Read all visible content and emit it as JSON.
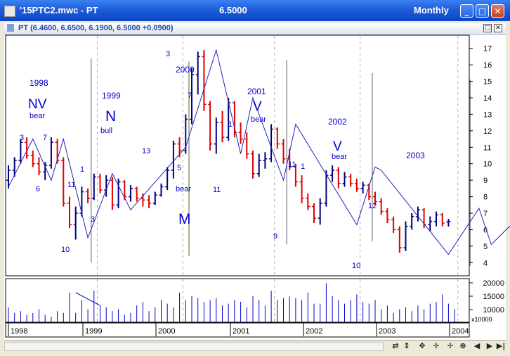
{
  "window": {
    "title": "'15PTC2.mwc - PT",
    "price": "6.5000",
    "period": "Monthly",
    "controls": [
      "_",
      "□",
      "✕"
    ]
  },
  "chart_header": {
    "symbol_text": "PT (6.4600, 6.6500, 6.1900, 6.5000 +0.0900)"
  },
  "annotations": [
    {
      "text": "1998",
      "color": "#0000CC"
    },
    {
      "text": "NV",
      "color": "#0000CC"
    },
    {
      "text": "bear",
      "color": "#0000CC"
    },
    {
      "text": "1999",
      "color": "#0000CC"
    },
    {
      "text": "N",
      "color": "#0000CC"
    },
    {
      "text": "bull",
      "color": "#0000CC"
    },
    {
      "text": "2000",
      "color": "#0000CC"
    },
    {
      "text": "bear",
      "color": "#0000CC"
    },
    {
      "text": "M",
      "color": "#0000CC"
    },
    {
      "text": "2001",
      "color": "#0000CC"
    },
    {
      "text": "V",
      "color": "#0000CC"
    },
    {
      "text": "bear",
      "color": "#0000CC"
    },
    {
      "text": "2002",
      "color": "#0000CC"
    },
    {
      "text": "V",
      "color": "#0000CC"
    },
    {
      "text": "bear",
      "color": "#0000CC"
    },
    {
      "text": "2003",
      "color": "#0000CC"
    }
  ],
  "wave_numbers": [
    "3",
    "7",
    "6",
    "10",
    "11",
    "1",
    "3",
    "13",
    "3",
    "7",
    "5",
    "11",
    "1",
    "9",
    "11",
    "1",
    "10",
    "12"
  ],
  "chart_data": {
    "type": "ohlc",
    "x_axis_labels": [
      "1998",
      "1999",
      "2000",
      "2001",
      "2002",
      "2003",
      "2004"
    ],
    "y_axis": {
      "ticks": [
        4,
        5,
        6,
        7,
        8,
        9,
        10,
        11,
        12,
        13,
        14,
        15,
        16,
        17
      ],
      "range": [
        3.2,
        17.8
      ]
    },
    "volume_axis": {
      "ticks": [
        "20000",
        "15000",
        "10000"
      ],
      "multiplier_label": "x10000"
    },
    "bars": [
      {
        "o": 9.0,
        "h": 9.9,
        "l": 8.5,
        "c": 9.6,
        "up": true
      },
      {
        "o": 9.6,
        "h": 10.4,
        "l": 9.2,
        "c": 10.2,
        "up": true
      },
      {
        "o": 10.2,
        "h": 11.5,
        "l": 10.0,
        "c": 11.3,
        "up": true
      },
      {
        "o": 11.3,
        "h": 11.6,
        "l": 10.3,
        "c": 10.5,
        "up": false
      },
      {
        "o": 10.5,
        "h": 10.8,
        "l": 9.8,
        "c": 10.0,
        "up": false
      },
      {
        "o": 10.0,
        "h": 10.4,
        "l": 9.3,
        "c": 9.5,
        "up": false
      },
      {
        "o": 9.5,
        "h": 10.1,
        "l": 9.0,
        "c": 9.9,
        "up": true
      },
      {
        "o": 9.9,
        "h": 11.6,
        "l": 9.7,
        "c": 11.3,
        "up": true
      },
      {
        "o": 11.3,
        "h": 11.5,
        "l": 10.0,
        "c": 10.2,
        "up": false
      },
      {
        "o": 10.2,
        "h": 10.4,
        "l": 7.4,
        "c": 7.6,
        "up": false
      },
      {
        "o": 7.6,
        "h": 8.0,
        "l": 6.1,
        "c": 6.3,
        "up": false
      },
      {
        "o": 6.3,
        "h": 7.4,
        "l": 5.4,
        "c": 7.0,
        "up": true
      },
      {
        "o": 7.0,
        "h": 8.6,
        "l": 6.8,
        "c": 8.3,
        "up": true
      },
      {
        "o": 8.3,
        "h": 8.5,
        "l": 7.6,
        "c": 7.9,
        "up": false
      },
      {
        "o": 7.9,
        "h": 9.4,
        "l": 7.8,
        "c": 9.2,
        "up": true
      },
      {
        "o": 9.2,
        "h": 9.4,
        "l": 8.2,
        "c": 8.4,
        "up": false
      },
      {
        "o": 8.4,
        "h": 9.3,
        "l": 8.0,
        "c": 9.0,
        "up": true
      },
      {
        "o": 9.0,
        "h": 9.2,
        "l": 7.2,
        "c": 7.5,
        "up": false
      },
      {
        "o": 7.5,
        "h": 9.1,
        "l": 7.3,
        "c": 8.9,
        "up": true
      },
      {
        "o": 8.9,
        "h": 9.0,
        "l": 7.8,
        "c": 8.0,
        "up": false
      },
      {
        "o": 8.0,
        "h": 8.7,
        "l": 7.7,
        "c": 8.5,
        "up": true
      },
      {
        "o": 8.5,
        "h": 8.6,
        "l": 7.7,
        "c": 7.9,
        "up": false
      },
      {
        "o": 7.9,
        "h": 8.2,
        "l": 7.4,
        "c": 7.8,
        "up": false
      },
      {
        "o": 7.8,
        "h": 8.1,
        "l": 7.3,
        "c": 7.6,
        "up": false
      },
      {
        "o": 7.6,
        "h": 8.3,
        "l": 7.5,
        "c": 8.1,
        "up": true
      },
      {
        "o": 8.1,
        "h": 8.8,
        "l": 8.0,
        "c": 8.6,
        "up": true
      },
      {
        "o": 8.6,
        "h": 9.8,
        "l": 8.4,
        "c": 9.6,
        "up": true
      },
      {
        "o": 9.6,
        "h": 11.4,
        "l": 9.1,
        "c": 11.2,
        "up": true
      },
      {
        "o": 11.2,
        "h": 11.6,
        "l": 10.4,
        "c": 10.8,
        "up": false
      },
      {
        "o": 10.8,
        "h": 13.0,
        "l": 10.6,
        "c": 12.7,
        "up": true
      },
      {
        "o": 12.7,
        "h": 15.8,
        "l": 12.4,
        "c": 15.4,
        "up": true
      },
      {
        "o": 15.4,
        "h": 16.8,
        "l": 14.2,
        "c": 16.5,
        "up": true
      },
      {
        "o": 16.5,
        "h": 16.9,
        "l": 13.2,
        "c": 13.6,
        "up": false
      },
      {
        "o": 13.6,
        "h": 13.8,
        "l": 10.8,
        "c": 11.2,
        "up": false
      },
      {
        "o": 11.2,
        "h": 12.8,
        "l": 10.6,
        "c": 12.5,
        "up": true
      },
      {
        "o": 12.5,
        "h": 13.2,
        "l": 11.3,
        "c": 11.6,
        "up": false
      },
      {
        "o": 11.6,
        "h": 14.0,
        "l": 11.4,
        "c": 13.7,
        "up": true
      },
      {
        "o": 13.7,
        "h": 13.8,
        "l": 11.6,
        "c": 11.9,
        "up": false
      },
      {
        "o": 11.9,
        "h": 12.5,
        "l": 11.2,
        "c": 11.5,
        "up": false
      },
      {
        "o": 11.5,
        "h": 11.9,
        "l": 10.3,
        "c": 10.6,
        "up": false
      },
      {
        "o": 10.6,
        "h": 10.8,
        "l": 9.1,
        "c": 9.4,
        "up": false
      },
      {
        "o": 9.4,
        "h": 10.6,
        "l": 9.2,
        "c": 10.2,
        "up": true
      },
      {
        "o": 10.2,
        "h": 10.7,
        "l": 9.7,
        "c": 10.3,
        "up": true
      },
      {
        "o": 10.3,
        "h": 12.4,
        "l": 10.1,
        "c": 12.1,
        "up": true
      },
      {
        "o": 12.1,
        "h": 12.2,
        "l": 10.9,
        "c": 11.2,
        "up": false
      },
      {
        "o": 11.2,
        "h": 11.5,
        "l": 10.0,
        "c": 10.3,
        "up": false
      },
      {
        "o": 10.3,
        "h": 10.9,
        "l": 9.6,
        "c": 9.8,
        "up": false
      },
      {
        "o": 9.8,
        "h": 10.0,
        "l": 8.6,
        "c": 8.9,
        "up": false
      },
      {
        "o": 8.9,
        "h": 9.3,
        "l": 7.6,
        "c": 7.9,
        "up": false
      },
      {
        "o": 7.9,
        "h": 8.2,
        "l": 7.2,
        "c": 7.4,
        "up": false
      },
      {
        "o": 7.4,
        "h": 7.6,
        "l": 6.4,
        "c": 6.7,
        "up": false
      },
      {
        "o": 6.7,
        "h": 7.9,
        "l": 6.3,
        "c": 7.6,
        "up": true
      },
      {
        "o": 7.6,
        "h": 9.6,
        "l": 7.4,
        "c": 9.3,
        "up": true
      },
      {
        "o": 9.3,
        "h": 9.9,
        "l": 8.9,
        "c": 9.6,
        "up": true
      },
      {
        "o": 9.6,
        "h": 9.8,
        "l": 8.5,
        "c": 8.8,
        "up": false
      },
      {
        "o": 8.8,
        "h": 9.5,
        "l": 8.6,
        "c": 9.2,
        "up": true
      },
      {
        "o": 9.2,
        "h": 9.4,
        "l": 8.6,
        "c": 8.8,
        "up": false
      },
      {
        "o": 8.8,
        "h": 9.1,
        "l": 8.3,
        "c": 8.5,
        "up": false
      },
      {
        "o": 8.5,
        "h": 8.9,
        "l": 8.2,
        "c": 8.7,
        "up": true
      },
      {
        "o": 8.7,
        "h": 8.8,
        "l": 7.8,
        "c": 8.0,
        "up": false
      },
      {
        "o": 8.0,
        "h": 8.3,
        "l": 7.5,
        "c": 7.7,
        "up": false
      },
      {
        "o": 7.7,
        "h": 7.9,
        "l": 6.9,
        "c": 7.1,
        "up": false
      },
      {
        "o": 7.1,
        "h": 7.3,
        "l": 6.4,
        "c": 6.6,
        "up": false
      },
      {
        "o": 6.6,
        "h": 6.8,
        "l": 5.8,
        "c": 6.0,
        "up": false
      },
      {
        "o": 6.0,
        "h": 6.2,
        "l": 4.6,
        "c": 4.9,
        "up": false
      },
      {
        "o": 4.9,
        "h": 6.5,
        "l": 4.7,
        "c": 6.2,
        "up": true
      },
      {
        "o": 6.2,
        "h": 7.0,
        "l": 6.0,
        "c": 6.8,
        "up": true
      },
      {
        "o": 6.8,
        "h": 7.4,
        "l": 6.5,
        "c": 7.2,
        "up": true
      },
      {
        "o": 7.2,
        "h": 7.3,
        "l": 6.1,
        "c": 6.3,
        "up": false
      },
      {
        "o": 6.3,
        "h": 6.8,
        "l": 5.9,
        "c": 6.5,
        "up": true
      },
      {
        "o": 6.5,
        "h": 7.1,
        "l": 6.2,
        "c": 6.9,
        "up": true
      },
      {
        "o": 6.9,
        "h": 7.0,
        "l": 6.2,
        "c": 6.4,
        "up": false
      },
      {
        "o": 6.46,
        "h": 6.65,
        "l": 6.19,
        "c": 6.5,
        "up": true
      }
    ],
    "volumes": [
      8000,
      5000,
      6000,
      4000,
      5000,
      7000,
      4000,
      3000,
      6000,
      5000,
      16000,
      5000,
      12000,
      7000,
      17000,
      9000,
      8000,
      6000,
      7000,
      4000,
      5000,
      9000,
      11000,
      6000,
      8000,
      12000,
      10000,
      8000,
      16000,
      12000,
      14000,
      13000,
      11000,
      12000,
      13000,
      9000,
      10000,
      12000,
      11000,
      8000,
      14000,
      12000,
      9000,
      17000,
      12000,
      13000,
      14000,
      13000,
      12000,
      16000,
      10000,
      10000,
      21000,
      14000,
      12000,
      10000,
      12000,
      15000,
      11000,
      10000,
      12000,
      7000,
      9000,
      5000,
      7000,
      8000,
      6000,
      9000,
      7000,
      10000,
      11000,
      15000,
      10000,
      7000
    ],
    "wave_line": [
      {
        "x": 0,
        "y": 8.6
      },
      {
        "x": 4,
        "y": 11.5
      },
      {
        "x": 7,
        "y": 9.0
      },
      {
        "x": 9,
        "y": 11.5
      },
      {
        "x": 13,
        "y": 5.5
      },
      {
        "x": 17,
        "y": 9.4
      },
      {
        "x": 20,
        "y": 7.2
      },
      {
        "x": 29,
        "y": 11.0
      },
      {
        "x": 34,
        "y": 16.9
      },
      {
        "x": 38,
        "y": 10.6
      },
      {
        "x": 40,
        "y": 14.0
      },
      {
        "x": 45,
        "y": 9.0
      },
      {
        "x": 47,
        "y": 12.4
      },
      {
        "x": 57,
        "y": 6.3
      },
      {
        "x": 60,
        "y": 9.8
      },
      {
        "x": 61,
        "y": 9.6
      },
      {
        "x": 72,
        "y": 4.5
      },
      {
        "x": 77,
        "y": 7.3
      },
      {
        "x": 79,
        "y": 5.1
      },
      {
        "x": 82,
        "y": 6.2
      },
      {
        "x": 88,
        "y": 4.4
      },
      {
        "x": 93,
        "y": 6.9
      }
    ],
    "volume_trend": [
      {
        "x": 11,
        "y": 16000
      },
      {
        "x": 15,
        "y": 9000
      }
    ],
    "year_separators": [
      15,
      29,
      44,
      58,
      74
    ],
    "channel_lines": [
      {
        "x": 14,
        "top": 16.4,
        "bottom": 4.0,
        "color": "#606060"
      },
      {
        "x": 30,
        "top": 16.2,
        "bottom": 4.4,
        "color": "#556B2F"
      },
      {
        "x": 46,
        "top": 16.3,
        "bottom": 5.1,
        "color": "#606060"
      },
      {
        "x": 60,
        "top": 15.5,
        "bottom": 5.3,
        "color": "#606060"
      },
      {
        "x": 76,
        "top": 15.1,
        "bottom": 3.8,
        "color": "#606060"
      }
    ],
    "colors": {
      "up": "#000080",
      "down": "#E00000",
      "wave": "#2222BB",
      "label": "#0000CC"
    }
  },
  "toolbar": {
    "icons": [
      "sync-icon",
      "scroll-icon",
      "scroll-up-down-icon",
      "move-icon",
      "zoom-in-icon",
      "left-arrow-icon",
      "right-arrow-icon",
      "end-icon"
    ]
  }
}
